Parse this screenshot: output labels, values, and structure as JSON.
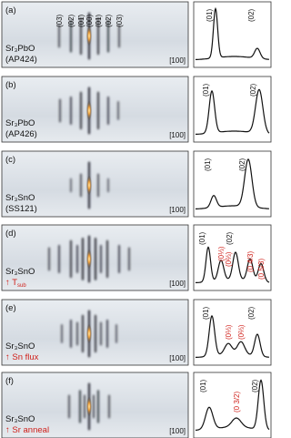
{
  "panels": [
    {
      "label": "(a)",
      "sample": "Sr₃PbO",
      "sample_id": "(AP424)",
      "direction": "[100]",
      "streak_labels": [
        "(03)",
        "(02)",
        "(01̄)",
        "(00)",
        "(01)",
        "(02)",
        "(03)"
      ],
      "peak_labels": [
        "(01)",
        "(02)"
      ]
    },
    {
      "label": "(b)",
      "sample": "Sr₃PbO",
      "sample_id": "(AP426)",
      "direction": "[100]",
      "peak_labels": [
        "(01)",
        "(02)"
      ]
    },
    {
      "label": "(c)",
      "sample": "Sr₃SnO",
      "sample_id": "(SS121)",
      "direction": "[100]",
      "peak_labels": [
        "(01)",
        "(02)"
      ]
    },
    {
      "label": "(d)",
      "sample": "Sr₃SnO",
      "note": "↑ T",
      "note_subscript": "sub",
      "direction": "[100]",
      "peak_labels": [
        "(01)",
        "(02)"
      ],
      "extra_peak_labels": [
        "(0⅓)",
        "(0⅔)",
        "(0 4/3)",
        "(0 5/3)"
      ]
    },
    {
      "label": "(e)",
      "sample": "Sr₃SnO",
      "note": "↑ Sn flux",
      "direction": "[100]",
      "peak_labels": [
        "(01)",
        "(02)"
      ],
      "extra_peak_labels": [
        "(0⅓)",
        "(0⅔)"
      ]
    },
    {
      "label": "(f)",
      "sample": "Sr₃SnO",
      "note": "↑ Sr anneal",
      "direction": "[100]",
      "peak_labels": [
        "(01)",
        "(02)"
      ],
      "extra_peak_labels": [
        "(0 3/2)"
      ]
    }
  ]
}
